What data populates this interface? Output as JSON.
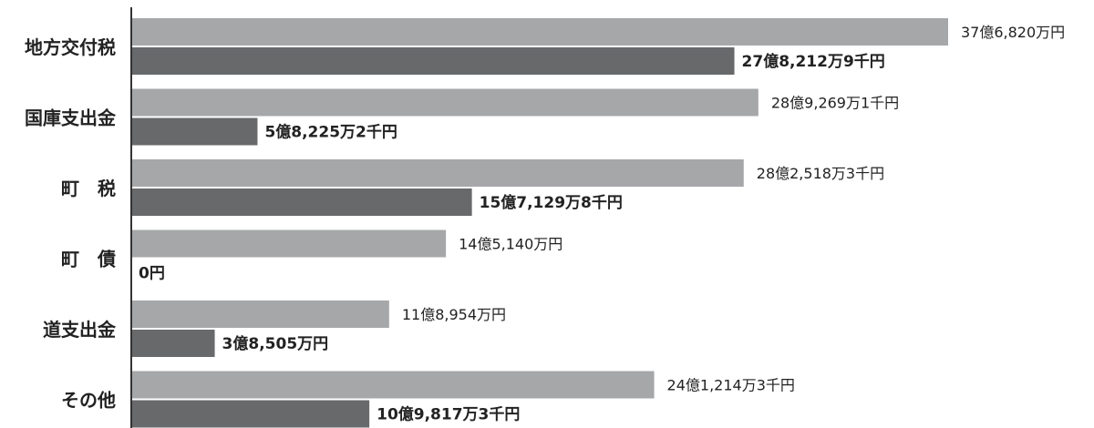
{
  "colors": {
    "series_light": "#a6a7a9",
    "series_dark": "#68696b",
    "axis": "#333333",
    "text": "#222222"
  },
  "chart_data": {
    "type": "bar",
    "orientation": "horizontal",
    "categories": [
      "地方交付税",
      "国庫支出金",
      "町　税",
      "町　債",
      "道支出金",
      "その他"
    ],
    "series": [
      {
        "values": [
          3768200000,
          2892691000,
          2825183000,
          1451400000,
          1189540000,
          2412143000
        ],
        "labels": [
          "37億6,820万円",
          "28億9,269万1千円",
          "28億2,518万3千円",
          "14億5,140万円",
          "11億8,954万円",
          "24億1,214万3千円"
        ]
      },
      {
        "values": [
          2782129000,
          582252000,
          1571298000,
          0,
          385050000,
          1098173000
        ],
        "labels": [
          "27億8,212万9千円",
          "5億8,225万2千円",
          "15億7,129万8千円",
          "0円",
          "3億8,505万円",
          "10億9,817万3千円"
        ]
      }
    ],
    "xlim": [
      0,
      3768200000
    ],
    "xlabel": "",
    "ylabel": "",
    "title": "",
    "legend": "none",
    "grid": false
  }
}
